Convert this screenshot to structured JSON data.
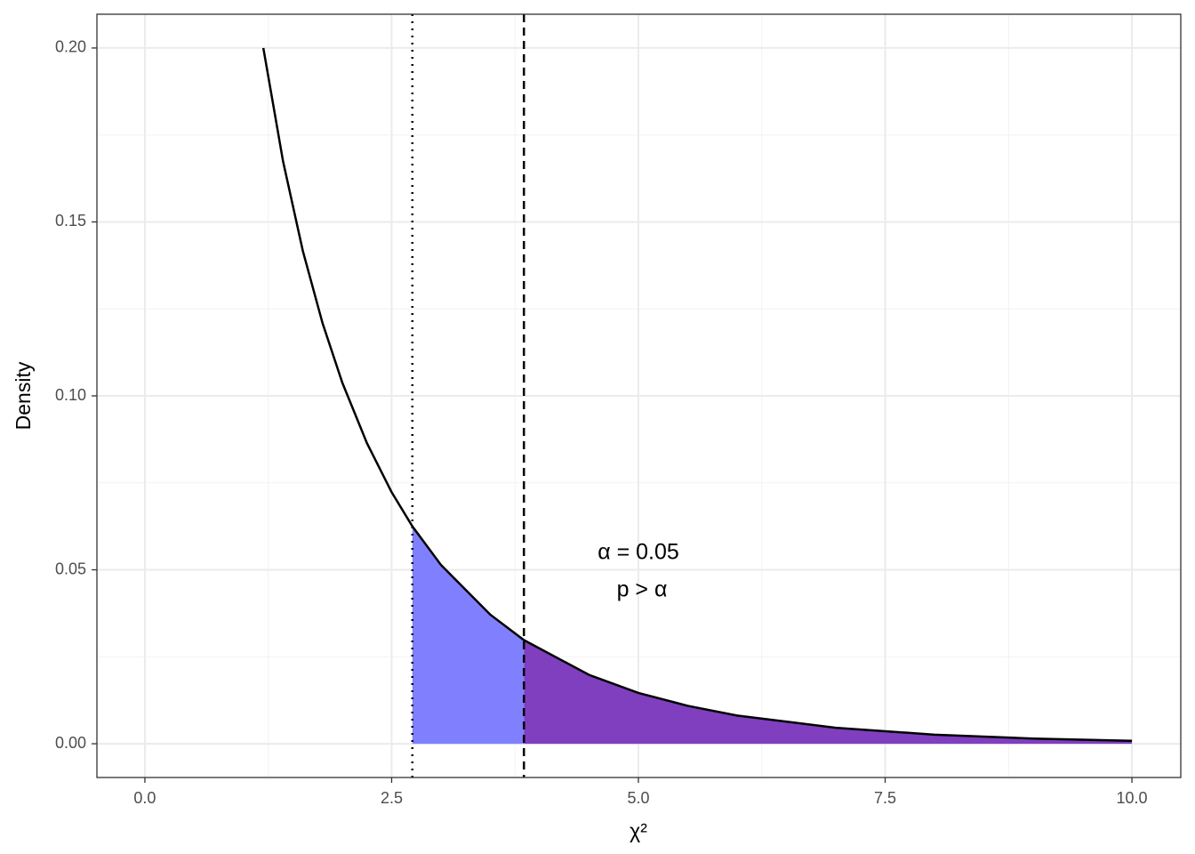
{
  "chart_data": {
    "type": "density",
    "x_label": "χ²",
    "y_label": "Density",
    "annotations": [
      "α = 0.05",
      "p > α"
    ],
    "x": [
      1.2,
      1.4,
      1.6,
      1.8,
      2.0,
      2.25,
      2.5,
      2.71,
      3.0,
      3.5,
      3.84,
      4.5,
      5.0,
      5.5,
      6.0,
      7.0,
      8.0,
      9.0,
      10.0
    ],
    "values": [
      0.2,
      0.1674,
      0.1417,
      0.1209,
      0.1038,
      0.0864,
      0.0723,
      0.0625,
      0.0514,
      0.0371,
      0.0298,
      0.0198,
      0.0146,
      0.0109,
      0.0081,
      0.0046,
      0.0026,
      0.0015,
      0.00085
    ],
    "color": "#000000",
    "shade": [
      {
        "from": 2.71,
        "to": 3.84,
        "color": "#8080ff"
      },
      {
        "from": 3.84,
        "to": 10.0,
        "color": "#7f3fbf"
      }
    ],
    "vlines": [
      {
        "value": 2.71,
        "style": "dotted"
      },
      {
        "value": 3.84,
        "style": "dashed"
      }
    ],
    "xlim": [
      -0.486,
      10.495
    ],
    "ylim": [
      -0.0097,
      0.2097
    ],
    "xticks": [
      {
        "value": 0,
        "label": "0.0"
      },
      2.5,
      {
        "value": 5,
        "label": "5.0"
      },
      7.5,
      {
        "value": 10,
        "label": "10.0"
      }
    ],
    "yticks": [
      {
        "value": 0,
        "label": "0.00"
      },
      0.05,
      {
        "value": 0.1,
        "label": "0.10"
      },
      0.15,
      {
        "value": 0.2,
        "label": "0.20"
      }
    ],
    "xminor": [
      1.25,
      3.75,
      6.25,
      8.75
    ],
    "yminor": [
      0.025,
      0.075,
      0.125,
      0.175
    ],
    "grid": true
  }
}
